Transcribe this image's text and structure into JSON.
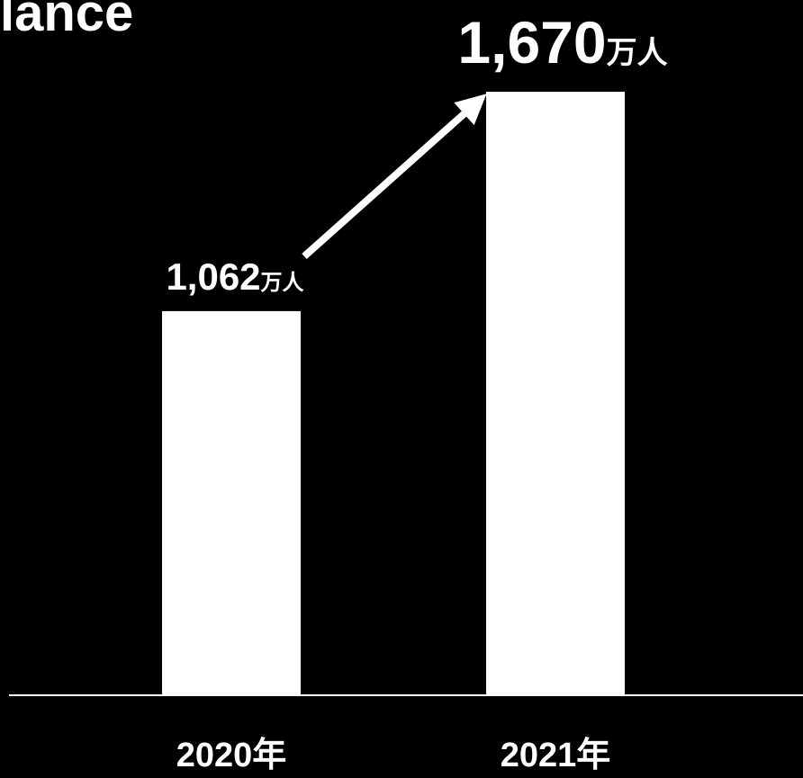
{
  "header": {
    "title_fragment": "lance"
  },
  "colors": {
    "background": "#000000",
    "bar": "#ffffff",
    "text": "#ffffff",
    "axis": "#ffffff",
    "arrow": "#ffffff"
  },
  "chart_data": {
    "type": "bar",
    "title": "",
    "xlabel": "",
    "ylabel": "",
    "categories": [
      "2020年",
      "2021年"
    ],
    "values": [
      1062,
      1670
    ],
    "data_labels": [
      {
        "number": "1,062",
        "unit": "万人"
      },
      {
        "number": "1,670",
        "unit": "万人"
      }
    ],
    "ylim": [
      0,
      1670
    ],
    "grid": false,
    "legend": "none",
    "annotations": [
      {
        "type": "arrow",
        "from_category": "2020年",
        "to_category": "2021年"
      }
    ]
  }
}
